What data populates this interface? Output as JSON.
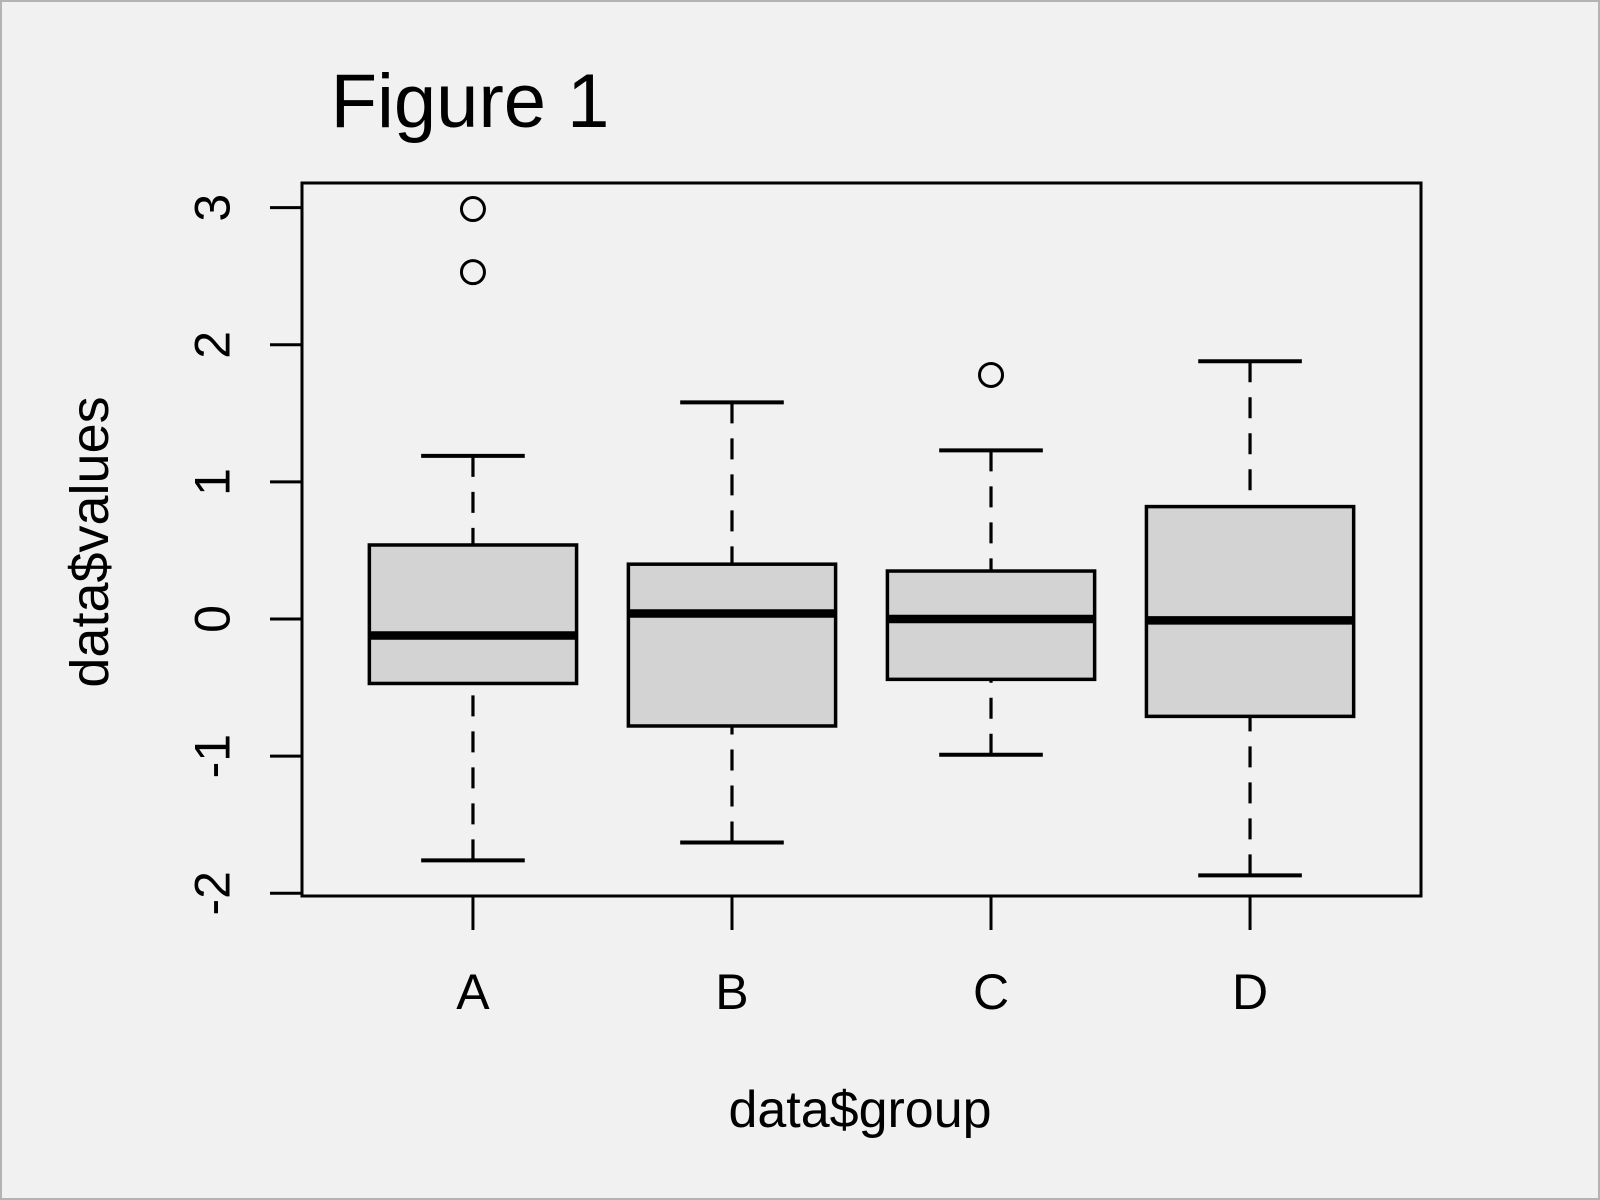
{
  "window": {
    "background": "#f1f1f1",
    "frame_color": "#b3b3b3"
  },
  "chart_data": {
    "type": "boxplot",
    "title": "Figure 1",
    "xlabel": "data$group",
    "ylabel": "data$values",
    "categories": [
      "A",
      "B",
      "C",
      "D"
    ],
    "y_ticks": [
      3,
      2,
      1,
      0,
      -1,
      -2
    ],
    "y_tick_labels": [
      "3",
      "2",
      "1",
      "0",
      "-1",
      "-2"
    ],
    "ylim": [
      -2.02,
      3.18
    ],
    "xlim": [
      0.34,
      4.66
    ],
    "grid": false,
    "legend": "none",
    "box_width": 0.8,
    "cap_width": 0.4,
    "box_fill": "#d3d3d3",
    "line_color": "#000000",
    "whisker_style": "dashed",
    "series": [
      {
        "name": "A",
        "x": 1,
        "low": -1.76,
        "q1": -0.47,
        "median": -0.12,
        "q3": 0.54,
        "high": 1.19,
        "outliers": [
          2.53,
          2.99
        ]
      },
      {
        "name": "B",
        "x": 2,
        "low": -1.63,
        "q1": -0.78,
        "median": 0.04,
        "q3": 0.4,
        "high": 1.58,
        "outliers": []
      },
      {
        "name": "C",
        "x": 3,
        "low": -0.99,
        "q1": -0.44,
        "median": 0.0,
        "q3": 0.35,
        "high": 1.23,
        "outliers": [
          1.78
        ]
      },
      {
        "name": "D",
        "x": 4,
        "low": -1.87,
        "q1": -0.71,
        "median": -0.01,
        "q3": 0.82,
        "high": 1.88,
        "outliers": []
      }
    ]
  }
}
